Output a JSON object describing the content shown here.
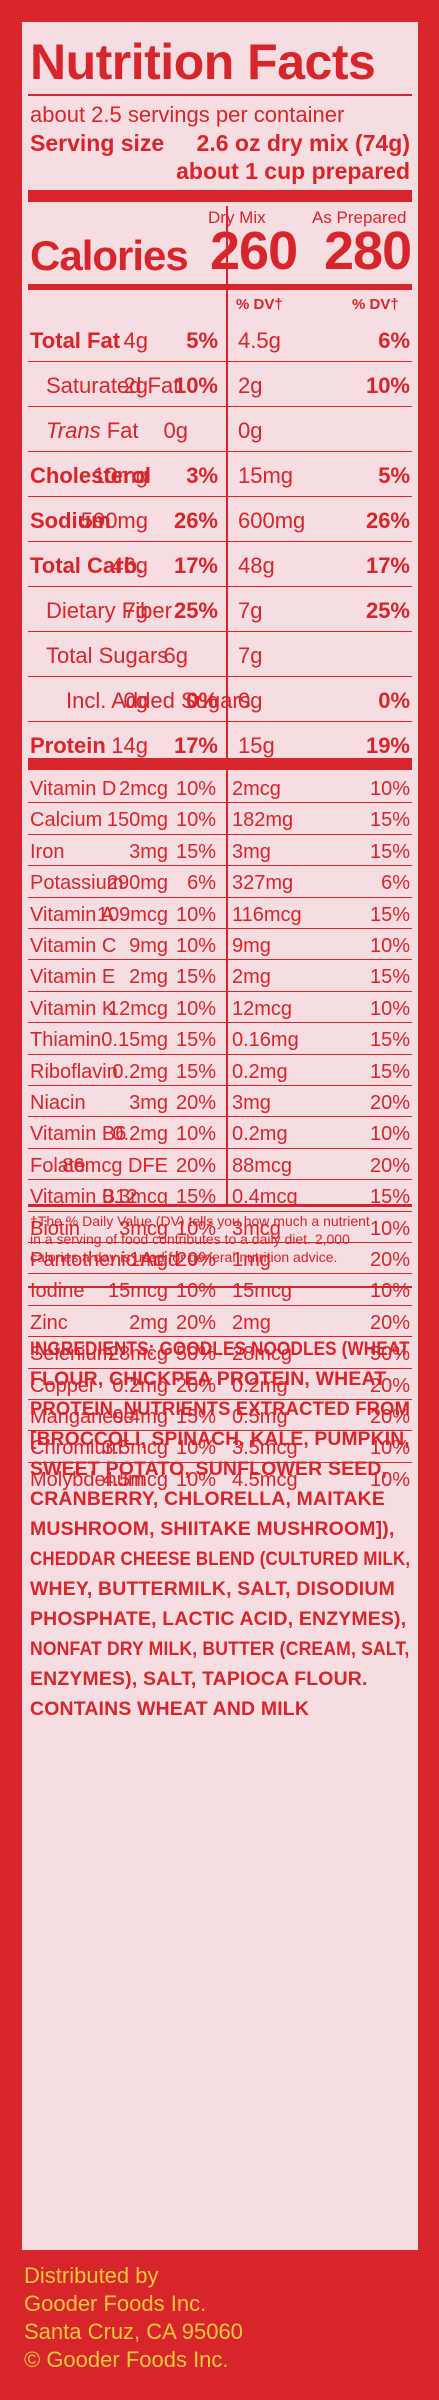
{
  "title": "Nutrition Facts",
  "servings": "about 2.5 servings per container",
  "serving_size_label": "Serving size",
  "serving_size_value": "2.6 oz dry mix (74g)",
  "serving_size_prepared": "about 1 cup prepared",
  "col_dry": "Dry Mix",
  "col_prepared": "As Prepared",
  "calories_label": "Calories",
  "calories_dry": "260",
  "calories_prepared": "280",
  "dv_header": "% DV†",
  "nutrients": [
    {
      "label": "Total Fat",
      "bold": true,
      "indent": 0,
      "dry_amt": "4g",
      "dry_dv": "5%",
      "prep_amt": "4.5g",
      "prep_dv": "6%"
    },
    {
      "label": "Saturated Fat",
      "bold": false,
      "indent": 1,
      "dry_amt": "2g",
      "dry_dv": "10%",
      "prep_amt": "2g",
      "prep_dv": "10%"
    },
    {
      "label_italic": "Trans",
      "label": " Fat",
      "bold": false,
      "indent": 1,
      "dry_amt": "0g",
      "dry_dv": "",
      "prep_amt": "0g",
      "prep_dv": ""
    },
    {
      "label": "Cholesterol",
      "bold": true,
      "indent": 0,
      "dry_amt": "10mg",
      "dry_dv": "3%",
      "prep_amt": "15mg",
      "prep_dv": "5%"
    },
    {
      "label": "Sodium",
      "bold": true,
      "indent": 0,
      "dry_amt": "590mg",
      "dry_dv": "26%",
      "prep_amt": "600mg",
      "prep_dv": "26%"
    },
    {
      "label": "Total Carb.",
      "bold": true,
      "indent": 0,
      "dry_amt": "46g",
      "dry_dv": "17%",
      "prep_amt": "48g",
      "prep_dv": "17%"
    },
    {
      "label": "Dietary Fiber",
      "bold": false,
      "indent": 1,
      "dry_amt": "7g",
      "dry_dv": "25%",
      "prep_amt": "7g",
      "prep_dv": "25%"
    },
    {
      "label": "Total Sugars",
      "bold": false,
      "indent": 1,
      "dry_amt": "6g",
      "dry_dv": "",
      "prep_amt": "7g",
      "prep_dv": ""
    },
    {
      "label": "Incl. Added Sugars",
      "bold": false,
      "indent": 2,
      "dry_amt": "0g",
      "dry_dv": "0%",
      "prep_amt": "0g",
      "prep_dv": "0%"
    },
    {
      "label": "Protein",
      "bold": true,
      "indent": 0,
      "dry_amt": "14g",
      "dry_dv": "17%",
      "prep_amt": "15g",
      "prep_dv": "19%"
    }
  ],
  "vitamins": [
    {
      "label": "Vitamin D",
      "dry_amt": "2mcg",
      "dry_dv": "10%",
      "prep_amt": "2mcg",
      "prep_dv": "10%"
    },
    {
      "label": "Calcium",
      "dry_amt": "150mg",
      "dry_dv": "10%",
      "prep_amt": "182mg",
      "prep_dv": "15%"
    },
    {
      "label": "Iron",
      "dry_amt": "3mg",
      "dry_dv": "15%",
      "prep_amt": "3mg",
      "prep_dv": "15%"
    },
    {
      "label": "Potassium",
      "dry_amt": "290mg",
      "dry_dv": "6%",
      "prep_amt": "327mg",
      "prep_dv": "6%"
    },
    {
      "label": "Vitamin A",
      "dry_amt": "109mcg",
      "dry_dv": "10%",
      "prep_amt": "116mcg",
      "prep_dv": "15%"
    },
    {
      "label": "Vitamin C",
      "dry_amt": "9mg",
      "dry_dv": "10%",
      "prep_amt": "9mg",
      "prep_dv": "10%"
    },
    {
      "label": "Vitamin E",
      "dry_amt": "2mg",
      "dry_dv": "15%",
      "prep_amt": "2mg",
      "prep_dv": "15%"
    },
    {
      "label": "Vitamin K",
      "dry_amt": "12mcg",
      "dry_dv": "10%",
      "prep_amt": "12mcg",
      "prep_dv": "10%"
    },
    {
      "label": "Thiamin",
      "dry_amt": "0.15mg",
      "dry_dv": "15%",
      "prep_amt": "0.16mg",
      "prep_dv": "15%"
    },
    {
      "label": "Riboflavin",
      "dry_amt": "0.2mg",
      "dry_dv": "15%",
      "prep_amt": "0.2mg",
      "prep_dv": "15%"
    },
    {
      "label": "Niacin",
      "dry_amt": "3mg",
      "dry_dv": "20%",
      "prep_amt": "3mg",
      "prep_dv": "20%"
    },
    {
      "label": "Vitamin B6",
      "dry_amt": "0.2mg",
      "dry_dv": "10%",
      "prep_amt": "0.2mg",
      "prep_dv": "10%"
    },
    {
      "label": "Folate",
      "dry_amt": "86mcg DFE",
      "dry_dv": "20%",
      "prep_amt": "88mcg",
      "prep_dv": "20%"
    },
    {
      "label": "Vitamin B12",
      "dry_amt": "0.3mcg",
      "dry_dv": "15%",
      "prep_amt": "0.4mcg",
      "prep_dv": "15%"
    },
    {
      "label": "Biotin",
      "dry_amt": "3mcg",
      "dry_dv": "10%",
      "prep_amt": "3mcg",
      "prep_dv": "10%"
    },
    {
      "label": "Pantothenic Acid",
      "dry_amt": "1mg",
      "dry_dv": "20%",
      "prep_amt": "1mg",
      "prep_dv": "20%"
    },
    {
      "label": "Iodine",
      "dry_amt": "15mcg",
      "dry_dv": "10%",
      "prep_amt": "15mcg",
      "prep_dv": "10%"
    },
    {
      "label": "Zinc",
      "dry_amt": "2mg",
      "dry_dv": "20%",
      "prep_amt": "2mg",
      "prep_dv": "20%"
    },
    {
      "label": "Selenium",
      "dry_amt": "28mcg",
      "dry_dv": "50%",
      "prep_amt": "28mcg",
      "prep_dv": "50%"
    },
    {
      "label": "Copper",
      "dry_amt": "0.2mg",
      "dry_dv": "20%",
      "prep_amt": "0.2mg",
      "prep_dv": "20%"
    },
    {
      "label": "Manganese",
      "dry_amt": "0.4mg",
      "dry_dv": "15%",
      "prep_amt": "0.5mg",
      "prep_dv": "20%"
    },
    {
      "label": "Chromium",
      "dry_amt": "3.5mcg",
      "dry_dv": "10%",
      "prep_amt": "3.5mcg",
      "prep_dv": "10%"
    },
    {
      "label": "Molybdenum",
      "dry_amt": "4.5mcg",
      "dry_dv": "10%",
      "prep_amt": "4.5mcg",
      "prep_dv": "10%"
    }
  ],
  "footnote": [
    "†The % Daily Value (DV) tells you how much a nutrient",
    "in a serving of  food contributes to a daily diet. 2,000",
    "calories a day is used for general nutrition advice."
  ],
  "ingredients_label": "INGREDIENTS:",
  "ingredients_lines": [
    " GOODLES NOODLES (WHEAT",
    "FLOUR, CHICKPEA PROTEIN, WHEAT",
    "PROTEIN, NUTRIENTS EXTRACTED FROM",
    "[BROCCOLI, SPINACH, KALE, PUMPKIN,",
    "SWEET POTATO, SUNFLOWER SEED,",
    "CRANBERRY, CHLORELLA, MAITAKE",
    "MUSHROOM, SHIITAKE MUSHROOM]),",
    "CHEDDAR CHEESE BLEND (CULTURED MILK,",
    "WHEY, BUTTERMILK, SALT, DISODIUM",
    "PHOSPHATE, LACTIC ACID, ENZYMES),",
    "NONFAT DRY MILK, BUTTER (CREAM, SALT,",
    "ENZYMES), SALT, TAPIOCA FLOUR."
  ],
  "contains": "CONTAINS WHEAT AND MILK",
  "footer": [
    "Distributed by",
    "Gooder Foods Inc.",
    "Santa Cruz, CA 95060",
    "© Gooder Foods Inc."
  ],
  "colors": {
    "red": "#d8242b",
    "panel": "#f6dde1",
    "footer_text": "#f5c73a"
  }
}
